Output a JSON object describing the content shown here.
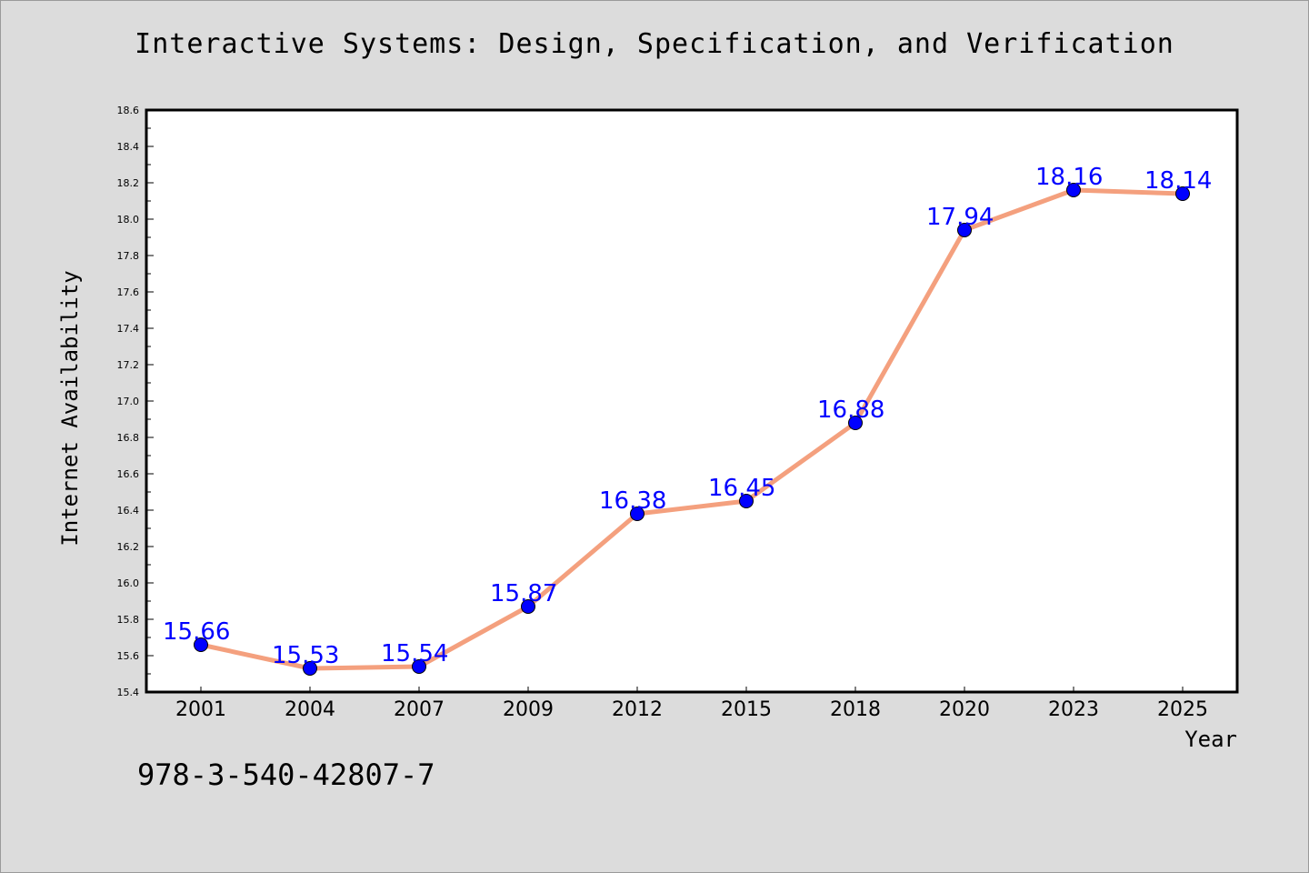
{
  "header": {
    "title": "Interactive Systems: Design, Specification, and Verification"
  },
  "footer": {
    "isbn": "978-3-540-42807-7"
  },
  "colors": {
    "line": "#f4a07e",
    "marker": "#0000ff",
    "label": "#0000ff",
    "background": "#dcdcdc",
    "plot_background": "#ffffff"
  },
  "chart_data": {
    "type": "line",
    "title": "Interactive Systems: Design, Specification, and Verification",
    "xlabel": "Year",
    "ylabel": "Internet Availability",
    "categories": [
      "2001",
      "2004",
      "2007",
      "2009",
      "2012",
      "2015",
      "2018",
      "2020",
      "2023",
      "2025"
    ],
    "series": [
      {
        "values": [
          15.66,
          15.53,
          15.54,
          15.87,
          16.38,
          16.45,
          16.88,
          17.94,
          18.16,
          18.14
        ]
      }
    ],
    "data_labels": [
      "15.66",
      "15.53",
      "15.54",
      "15.87",
      "16.38",
      "16.45",
      "16.88",
      "17.94",
      "18.16",
      "18.14"
    ],
    "ylim": [
      15.4,
      18.6
    ],
    "yticks": [
      "15.4",
      "15.6",
      "15.8",
      "16.0",
      "16.2",
      "16.4",
      "16.6",
      "16.8",
      "17.0",
      "17.2",
      "17.4",
      "17.6",
      "17.8",
      "18.0",
      "18.2",
      "18.4",
      "18.6"
    ],
    "grid": false,
    "legend": "none"
  }
}
